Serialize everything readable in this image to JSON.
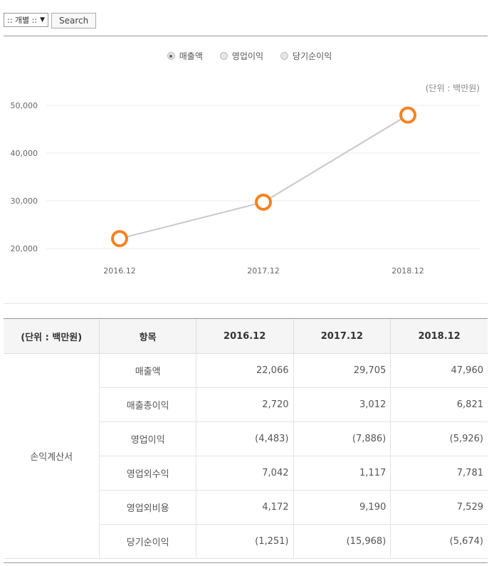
{
  "controls": {
    "select_value": ":: 개별 ::",
    "search_label": "Search"
  },
  "legend": [
    {
      "label": "매출액",
      "checked": true
    },
    {
      "label": "영업이익",
      "checked": false
    },
    {
      "label": "당기순이익",
      "checked": false
    }
  ],
  "unit": "(단위 : 백만원)",
  "colors": {
    "line": "#c8c8c8",
    "marker": "#f58220",
    "grid": "#ececec"
  },
  "chart_data": {
    "type": "line",
    "categories": [
      "2016.12",
      "2017.12",
      "2018.12"
    ],
    "series": [
      {
        "name": "매출액",
        "values": [
          22066,
          29705,
          47960
        ]
      }
    ],
    "yticks": [
      "50,000",
      "40,000",
      "30,000",
      "20,000"
    ],
    "ylim": [
      20000,
      50000
    ],
    "grid": true
  },
  "table": {
    "headers": [
      "(단위 : 백만원)",
      "항목",
      "2016.12",
      "2017.12",
      "2018.12"
    ],
    "group_label": "손익계산서",
    "rows": [
      {
        "item": "매출액",
        "values": [
          "22,066",
          "29,705",
          "47,960"
        ]
      },
      {
        "item": "매출총이익",
        "values": [
          "2,720",
          "3,012",
          "6,821"
        ]
      },
      {
        "item": "영업이익",
        "values": [
          "(4,483)",
          "(7,886)",
          "(5,926)"
        ]
      },
      {
        "item": "영업외수익",
        "values": [
          "7,042",
          "1,117",
          "7,781"
        ]
      },
      {
        "item": "영업외비용",
        "values": [
          "4,172",
          "9,190",
          "7,529"
        ]
      },
      {
        "item": "당기순이익",
        "values": [
          "(1,251)",
          "(15,968)",
          "(5,674)"
        ]
      }
    ]
  }
}
